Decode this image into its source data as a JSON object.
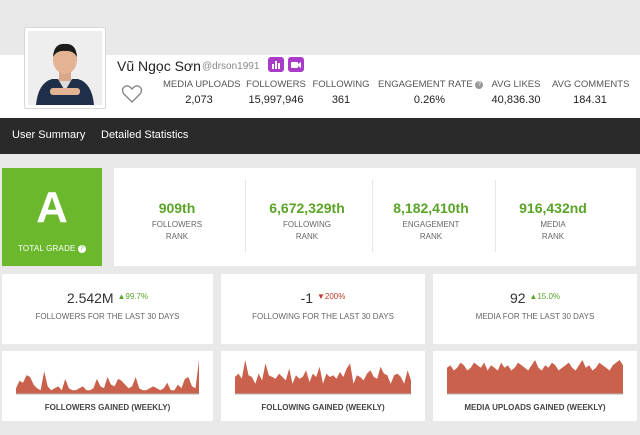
{
  "profile": {
    "name": "Vũ Ngọc Sơn",
    "handle": "@drson1991",
    "badges": [
      "chart-icon",
      "video-icon"
    ],
    "badge_color": "#a83cc8"
  },
  "stats": [
    {
      "label": "MEDIA UPLOADS",
      "value": "2,073"
    },
    {
      "label": "FOLLOWERS",
      "value": "15,997,946"
    },
    {
      "label": "FOLLOWING",
      "value": "361"
    },
    {
      "label": "ENGAGEMENT RATE",
      "value": "0.26%"
    },
    {
      "label": "AVG LIKES",
      "value": "40,836.30"
    },
    {
      "label": "AVG COMMENTS",
      "value": "184.31"
    }
  ],
  "nav": {
    "tabs": [
      "User Summary",
      "Detailed Statistics"
    ]
  },
  "grade": {
    "letter": "A",
    "label": "TOTAL GRADE",
    "color": "#6bb82c"
  },
  "ranks": [
    {
      "value": "909th",
      "line1": "FOLLOWERS",
      "line2": "RANK"
    },
    {
      "value": "6,672,329th",
      "line1": "FOLLOWING",
      "line2": "RANK"
    },
    {
      "value": "8,182,410th",
      "line1": "ENGAGEMENT",
      "line2": "RANK"
    },
    {
      "value": "916,432nd",
      "line1": "MEDIA",
      "line2": "RANK"
    }
  ],
  "last30": [
    {
      "value": "2.542M",
      "change": "▲99.7%",
      "direction": "up",
      "caption": "FOLLOWERS FOR THE LAST 30 DAYS"
    },
    {
      "value": "-1",
      "change": "▼200%",
      "direction": "down",
      "caption": "FOLLOWING FOR THE LAST 30 DAYS"
    },
    {
      "value": "92",
      "change": "▲15.0%",
      "direction": "up",
      "caption": "MEDIA FOR THE LAST 30 DAYS"
    }
  ],
  "charts": [
    {
      "caption": "FOLLOWERS GAINED (WEEKLY)",
      "color": "#c9614c",
      "values": [
        3,
        7,
        6,
        10,
        9,
        5,
        3,
        2,
        12,
        4,
        2,
        3,
        4,
        2,
        8,
        3,
        2,
        2,
        3,
        4,
        2,
        2,
        3,
        8,
        4,
        3,
        9,
        5,
        4,
        8,
        7,
        5,
        3,
        4,
        9,
        3,
        2,
        2,
        3,
        4,
        3,
        2,
        3,
        6,
        2,
        2,
        5,
        3,
        8,
        9,
        4,
        3,
        18
      ]
    },
    {
      "caption": "FOLLOWING GAINED (WEEKLY)",
      "color": "#c9614c",
      "values": [
        10,
        12,
        9,
        20,
        11,
        10,
        6,
        12,
        8,
        18,
        11,
        10,
        9,
        12,
        10,
        8,
        15,
        6,
        11,
        9,
        10,
        14,
        7,
        12,
        10,
        16,
        6,
        12,
        10,
        11,
        9,
        13,
        10,
        15,
        18,
        6,
        11,
        10,
        8,
        12,
        14,
        10,
        9,
        16,
        12,
        11,
        6,
        11,
        12,
        10,
        6,
        14,
        8
      ]
    },
    {
      "caption": "MEDIA UPLOADS GAINED (WEEKLY)",
      "color": "#c9614c",
      "values": [
        10,
        11,
        9,
        10,
        12,
        11,
        9,
        10,
        12,
        11,
        10,
        12,
        9,
        11,
        10,
        9,
        12,
        10,
        11,
        9,
        10,
        12,
        11,
        10,
        9,
        11,
        13,
        10,
        9,
        11,
        10,
        12,
        11,
        9,
        10,
        11,
        12,
        10,
        9,
        11,
        13,
        10,
        11,
        9,
        10,
        12,
        11,
        10,
        9,
        11,
        12,
        13,
        11
      ]
    }
  ]
}
